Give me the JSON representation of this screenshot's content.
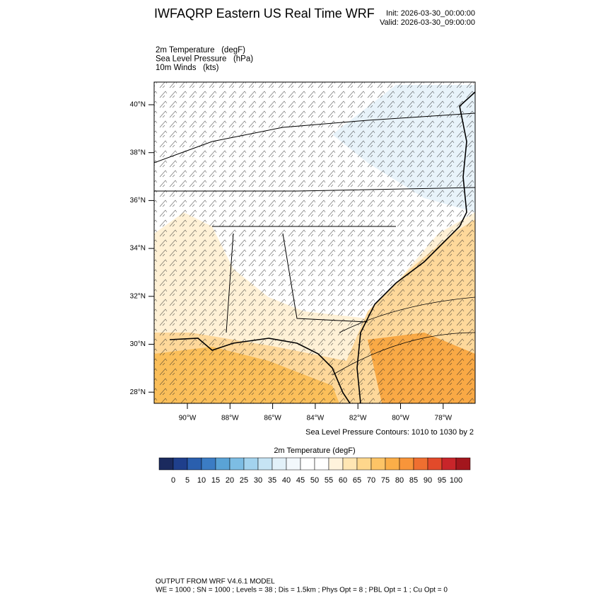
{
  "header": {
    "title": "IWFAQRP Eastern US Real Time WRF",
    "init": "Init: 2026-03-30_00:00:00",
    "valid": "Valid: 2026-03-30_09:00:00"
  },
  "fields": [
    "2m Temperature   (degF)",
    "Sea Level Pressure   (hPa)",
    "10m Winds   (kts)"
  ],
  "map": {
    "lat_labels": [
      "40°N",
      "38°N",
      "36°N",
      "34°N",
      "32°N",
      "30°N",
      "28°N"
    ],
    "lon_labels": [
      "90°W",
      "88°W",
      "86°W",
      "84°W",
      "82°W",
      "80°W",
      "78°W"
    ],
    "contour_note": "Sea Level Pressure Contours: 1010 to 1030 by 2"
  },
  "colorbar": {
    "title": "2m Temperature  (degF)",
    "colors": [
      "#1b2a5e",
      "#1f3f8c",
      "#2a5fae",
      "#3b7cc4",
      "#5aa3d6",
      "#7dbde4",
      "#a3d3ee",
      "#c6e4f4",
      "#e2f1f9",
      "#f2f8fc",
      "#ffffff",
      "#ffffff",
      "#fff3dc",
      "#ffe6b3",
      "#fed78c",
      "#fdc466",
      "#fbae48",
      "#f8953a",
      "#ef6f30",
      "#e24a2a",
      "#c8252a",
      "#a3161d"
    ],
    "labels": [
      0,
      5,
      10,
      15,
      20,
      25,
      30,
      35,
      40,
      45,
      50,
      55,
      60,
      65,
      70,
      75,
      80,
      85,
      90,
      95,
      100
    ]
  },
  "footer": {
    "line1": "OUTPUT FROM WRF V4.6.1 MODEL",
    "line2": "WE = 1000 ; SN = 1000 ; Levels = 38 ; Dis = 1.5km ; Phys Opt = 8 ; PBL Opt = 1 ; Cu Opt = 0"
  }
}
